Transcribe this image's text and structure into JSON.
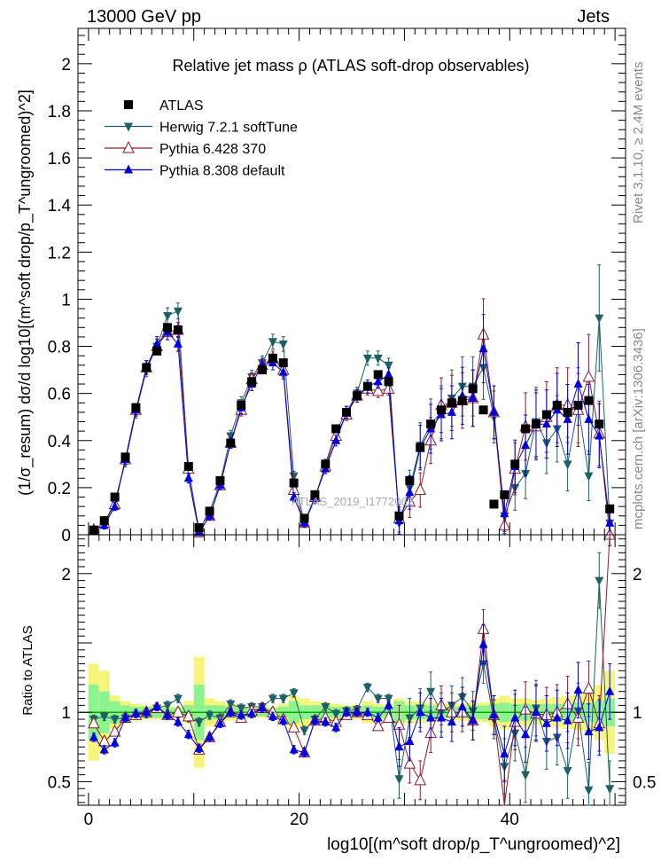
{
  "header": {
    "left": "13000 GeV pp",
    "right": "Jets"
  },
  "side_labels": {
    "rivet": "Rivet 3.1.10, ≥ 2.4M events",
    "mcplots": "mcplots.cern.ch [arXiv:1306.3436]"
  },
  "watermark": "ATLAS_2019_I1772062",
  "chart_data": [
    {
      "type": "line",
      "title": "Relative jet mass ρ (ATLAS soft-drop observables)",
      "ylabel": "(1/σ_resum) dσ/d log10[(m^soft drop/p_T^ungroomed)^2]",
      "xlabel": "",
      "xlim": [
        -1,
        51
      ],
      "ylim": [
        0,
        2.15
      ],
      "yticks": [
        "0",
        "0.2",
        "0.4",
        "0.6",
        "0.8",
        "1",
        "1.2",
        "1.4",
        "1.6",
        "1.8",
        "2"
      ],
      "legend_position": "top-left",
      "x": [
        0.5,
        1.5,
        2.5,
        3.5,
        4.5,
        5.5,
        6.5,
        7.5,
        8.5,
        9.5,
        10.5,
        11.5,
        12.5,
        13.5,
        14.5,
        15.5,
        16.5,
        17.5,
        18.5,
        19.5,
        20.5,
        21.5,
        22.5,
        23.5,
        24.5,
        25.5,
        26.5,
        27.5,
        28.5,
        29.5,
        30.5,
        31.5,
        32.5,
        33.5,
        34.5,
        35.5,
        36.5,
        37.5,
        38.5,
        39.5,
        40.5,
        41.5,
        42.5,
        43.5,
        44.5,
        45.5,
        46.5,
        47.5,
        48.5,
        49.5
      ],
      "series": [
        {
          "name": "ATLAS",
          "color": "#000000",
          "marker": "square",
          "values": [
            0.02,
            0.06,
            0.16,
            0.33,
            0.54,
            0.71,
            0.78,
            0.88,
            0.87,
            0.29,
            0.03,
            0.1,
            0.23,
            0.39,
            0.55,
            0.65,
            0.7,
            0.75,
            0.73,
            0.22,
            0.07,
            0.17,
            0.3,
            0.45,
            0.52,
            0.59,
            0.63,
            0.68,
            0.65,
            0.08,
            0.23,
            0.37,
            0.47,
            0.53,
            0.56,
            0.57,
            0.62,
            0.53,
            0.13,
            0.17,
            0.3,
            0.45,
            0.47,
            0.51,
            0.55,
            0.52,
            0.55,
            0.57,
            0.47,
            0.11
          ]
        },
        {
          "name": "Herwig 7.2.1 softTune",
          "color": "#1f5f66",
          "marker": "triangle-down",
          "values": [
            0.02,
            0.05,
            0.14,
            0.31,
            0.52,
            0.7,
            0.8,
            0.93,
            0.95,
            0.27,
            0.02,
            0.1,
            0.22,
            0.42,
            0.56,
            0.67,
            0.73,
            0.82,
            0.81,
            0.25,
            0.05,
            0.15,
            0.3,
            0.44,
            0.52,
            0.6,
            0.75,
            0.75,
            0.72,
            0.05,
            0.2,
            0.38,
            0.47,
            0.52,
            0.58,
            0.63,
            0.63,
            0.71,
            0.5,
            0.08,
            0.2,
            0.26,
            0.48,
            0.39,
            0.45,
            0.3,
            0.55,
            0.25,
            0.92,
            0.05
          ]
        },
        {
          "name": "Pythia 6.428 370",
          "color": "#8b1a2b",
          "marker": "triangle-up-open",
          "values": [
            0.02,
            0.05,
            0.13,
            0.32,
            0.53,
            0.71,
            0.8,
            0.86,
            0.87,
            0.28,
            0.01,
            0.08,
            0.21,
            0.39,
            0.53,
            0.66,
            0.72,
            0.75,
            0.7,
            0.19,
            0.05,
            0.16,
            0.29,
            0.42,
            0.51,
            0.59,
            0.62,
            0.61,
            0.62,
            0.07,
            0.14,
            0.19,
            0.4,
            0.55,
            0.56,
            0.57,
            0.58,
            0.85,
            0.52,
            0.04,
            0.28,
            0.46,
            0.46,
            0.5,
            0.55,
            0.55,
            0.53,
            0.67,
            0.43,
            0.0
          ]
        },
        {
          "name": "Pythia 8.308 default",
          "color": "#0000dd",
          "marker": "triangle-up",
          "values": [
            0.02,
            0.04,
            0.12,
            0.32,
            0.53,
            0.71,
            0.81,
            0.86,
            0.81,
            0.24,
            0.01,
            0.08,
            0.21,
            0.39,
            0.54,
            0.64,
            0.72,
            0.73,
            0.69,
            0.16,
            0.05,
            0.16,
            0.28,
            0.4,
            0.52,
            0.59,
            0.63,
            0.65,
            0.68,
            0.06,
            0.18,
            0.37,
            0.45,
            0.51,
            0.52,
            0.59,
            0.58,
            0.79,
            0.52,
            0.09,
            0.29,
            0.38,
            0.47,
            0.47,
            0.53,
            0.49,
            0.64,
            0.49,
            0.42,
            0.05
          ]
        }
      ]
    },
    {
      "type": "line",
      "title": "",
      "xlabel": "log10[(m^soft drop/p_T^ungroomed)^2]",
      "ylabel": "Ratio to ATLAS",
      "xlim": [
        -1,
        51
      ],
      "ylim": [
        0.33,
        2.28
      ],
      "xticks": [
        "0",
        "20",
        "40"
      ],
      "yticks": [
        "0.5",
        "1",
        "2"
      ],
      "reference": 1,
      "band_colors": {
        "inner": "#8ef38e",
        "outer": "#f5f57a",
        "reference_line": "#00aa00"
      },
      "band_inner_halfwidth": [
        0.2,
        0.15,
        0.08,
        0.05,
        0.04,
        0.04,
        0.04,
        0.03,
        0.03,
        0.05,
        0.2,
        0.05,
        0.05,
        0.04,
        0.03,
        0.03,
        0.03,
        0.03,
        0.04,
        0.08,
        0.05,
        0.05,
        0.05,
        0.04,
        0.04,
        0.03,
        0.05,
        0.04,
        0.04,
        0.08,
        0.05,
        0.05,
        0.05,
        0.04,
        0.04,
        0.04,
        0.05,
        0.05,
        0.06,
        0.07,
        0.06,
        0.06,
        0.05,
        0.06,
        0.06,
        0.06,
        0.07,
        0.07,
        0.08,
        0.1
      ],
      "band_outer_halfwidth": [
        0.35,
        0.3,
        0.12,
        0.08,
        0.06,
        0.05,
        0.05,
        0.04,
        0.04,
        0.08,
        0.4,
        0.1,
        0.08,
        0.06,
        0.05,
        0.04,
        0.04,
        0.04,
        0.06,
        0.12,
        0.1,
        0.08,
        0.07,
        0.06,
        0.05,
        0.05,
        0.08,
        0.06,
        0.06,
        0.1,
        0.08,
        0.08,
        0.07,
        0.06,
        0.06,
        0.06,
        0.07,
        0.07,
        0.1,
        0.12,
        0.1,
        0.1,
        0.09,
        0.1,
        0.11,
        0.12,
        0.13,
        0.15,
        0.2,
        0.3
      ],
      "series": [
        {
          "name": "Herwig 7.2.1 softTune",
          "color": "#1f5f66",
          "marker": "triangle-down",
          "values": [
            0.95,
            0.97,
            0.95,
            0.96,
            0.98,
            0.99,
            1.03,
            1.05,
            1.1,
            0.96,
            0.93,
            0.98,
            0.96,
            1.06,
            1.03,
            1.04,
            1.04,
            1.1,
            1.1,
            1.14,
            0.87,
            0.95,
            1.04,
            0.99,
            1.01,
            1.02,
            1.18,
            1.1,
            1.1,
            0.52,
            0.96,
            1.03,
            1.15,
            1.0,
            1.05,
            1.11,
            1.01,
            1.35,
            0.95,
            0.61,
            0.85,
            0.55,
            1.03,
            0.79,
            0.82,
            0.58,
            1.01,
            0.44,
            1.95,
            0.45
          ]
        },
        {
          "name": "Pythia 6.428 370",
          "color": "#8b1a2b",
          "marker": "triangle-up-open",
          "values": [
            0.92,
            0.79,
            0.86,
            0.96,
            0.98,
            1.0,
            1.03,
            0.98,
            1.0,
            0.97,
            0.73,
            0.82,
            0.93,
            1.0,
            0.96,
            1.01,
            1.03,
            1.0,
            0.95,
            0.89,
            0.71,
            0.94,
            0.96,
            0.93,
            0.98,
            1.0,
            0.98,
            0.9,
            0.96,
            0.91,
            0.63,
            0.51,
            0.85,
            1.05,
            1.0,
            1.0,
            0.94,
            1.6,
            0.98,
            0.31,
            0.93,
            1.02,
            0.99,
            0.98,
            1.0,
            1.06,
            0.96,
            1.17,
            0.92,
            2.4
          ]
        },
        {
          "name": "Pythia 8.308 default",
          "color": "#0000dd",
          "marker": "triangle-up",
          "values": [
            0.82,
            0.73,
            0.78,
            0.96,
            0.99,
            1.0,
            1.04,
            0.98,
            0.93,
            0.84,
            0.74,
            0.82,
            0.92,
            1.0,
            0.98,
            0.99,
            1.03,
            0.97,
            0.94,
            0.73,
            0.71,
            0.94,
            0.93,
            0.89,
            1.0,
            1.0,
            1.0,
            0.96,
            1.05,
            0.75,
            0.79,
            1.0,
            0.96,
            0.96,
            0.93,
            1.04,
            0.94,
            1.49,
            0.98,
            0.7,
            0.96,
            0.84,
            1.0,
            0.92,
            0.96,
            0.94,
            1.16,
            0.86,
            0.89,
            1.15
          ]
        }
      ]
    }
  ]
}
